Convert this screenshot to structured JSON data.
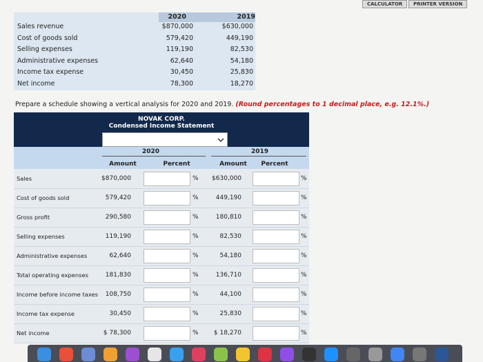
{
  "toolbar": {
    "buttons": [
      "CALCULATOR",
      "PRINTER VERSION"
    ]
  },
  "given_data": {
    "headers": [
      "2020",
      "2019"
    ],
    "rows": [
      [
        "Sales revenue",
        "$870,000",
        "$630,000"
      ],
      [
        "Cost of goods sold",
        "579,420",
        "449,190"
      ],
      [
        "Selling expenses",
        "119,190",
        "82,530"
      ],
      [
        "Administrative expenses",
        "62,640",
        "54,180"
      ],
      [
        "Income tax expense",
        "30,450",
        "25,830"
      ],
      [
        "Net income",
        "78,300",
        "18,270"
      ]
    ]
  },
  "instruction": {
    "text": "Prepare a schedule showing a vertical analysis for 2020 and 2019.",
    "note": "(Round percentages to 1 decimal place, e.g. 12.1%.)"
  },
  "statement": {
    "company": "NOVAK CORP.",
    "title": "Condensed Income Statement",
    "years": [
      "2020",
      "2019"
    ],
    "columns": [
      "Amount",
      "Percent",
      "Amount",
      "Percent"
    ],
    "percent_sign": "%",
    "rows": [
      [
        "Sales",
        "$870,000",
        "$630,000"
      ],
      [
        "Cost of goods sold",
        "579,420",
        "449,190"
      ],
      [
        "Gross profit",
        "290,580",
        "180,810"
      ],
      [
        "Selling expenses",
        "119,190",
        "82,530"
      ],
      [
        "Administrative expenses",
        "62,640",
        "54,180"
      ],
      [
        "Total operating expenses",
        "181,830",
        "136,710"
      ],
      [
        "Income before income taxes",
        "108,750",
        "44,100"
      ],
      [
        "Income tax expense",
        "30,450",
        "25,830"
      ],
      [
        "Net income",
        "$ 78,300",
        "$ 18,270"
      ]
    ]
  }
}
